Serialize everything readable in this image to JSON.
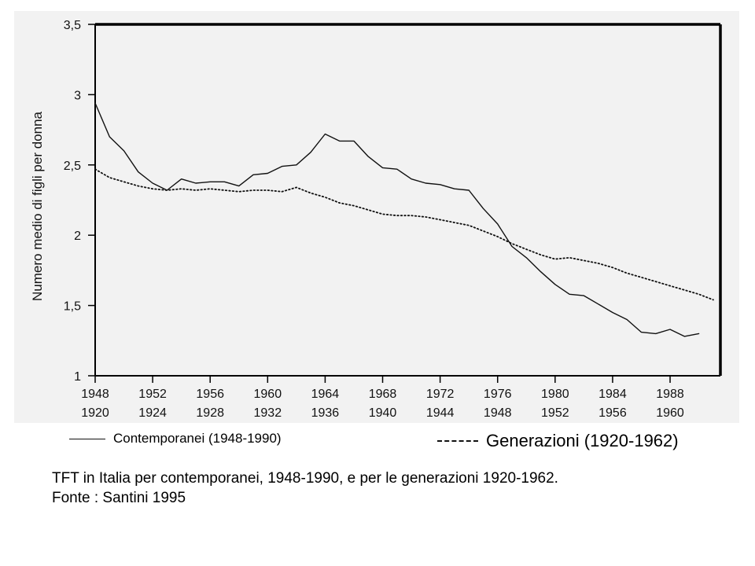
{
  "chart_data": {
    "type": "line",
    "ylabel": "Numero medio di figli per donna",
    "xlabel": "",
    "ylim": [
      1,
      3.5
    ],
    "yticks": [
      1,
      1.5,
      2,
      2.5,
      3,
      3.5
    ],
    "ytick_labels": [
      "1",
      "1,5",
      "2",
      "2,5",
      "3",
      "3,5"
    ],
    "xlim": [
      1948,
      1991.5
    ],
    "xticks": [
      1948,
      1952,
      1956,
      1960,
      1964,
      1968,
      1972,
      1976,
      1980,
      1984,
      1988
    ],
    "xtick_labels_row1": [
      "1948",
      "1952",
      "1956",
      "1960",
      "1964",
      "1968",
      "1972",
      "1976",
      "1980",
      "1984",
      "1988"
    ],
    "xtick_labels_row2": [
      "1920",
      "1924",
      "1928",
      "1932",
      "1936",
      "1940",
      "1944",
      "1948",
      "1952",
      "1956",
      "1960"
    ],
    "grid": false,
    "legend_position": "bottom",
    "series": [
      {
        "name": "Contemporanei (1948-1990)",
        "style": "solid",
        "color": "#111111",
        "x": [
          1948,
          1949,
          1950,
          1951,
          1952,
          1953,
          1954,
          1955,
          1956,
          1957,
          1958,
          1959,
          1960,
          1961,
          1962,
          1963,
          1964,
          1965,
          1966,
          1967,
          1968,
          1969,
          1970,
          1971,
          1972,
          1973,
          1974,
          1975,
          1976,
          1977,
          1978,
          1979,
          1980,
          1981,
          1982,
          1983,
          1984,
          1985,
          1986,
          1987,
          1988,
          1989,
          1990
        ],
        "y": [
          2.94,
          2.7,
          2.6,
          2.45,
          2.37,
          2.32,
          2.4,
          2.37,
          2.38,
          2.38,
          2.35,
          2.43,
          2.44,
          2.49,
          2.5,
          2.59,
          2.72,
          2.67,
          2.67,
          2.56,
          2.48,
          2.47,
          2.4,
          2.37,
          2.36,
          2.33,
          2.32,
          2.19,
          2.08,
          1.92,
          1.84,
          1.74,
          1.65,
          1.58,
          1.57,
          1.51,
          1.45,
          1.4,
          1.31,
          1.3,
          1.33,
          1.28,
          1.3
        ]
      },
      {
        "name": "Generazioni (1920-1962)",
        "style": "dotted",
        "color": "#111111",
        "x": [
          1948,
          1949,
          1950,
          1951,
          1952,
          1953,
          1954,
          1955,
          1956,
          1957,
          1958,
          1959,
          1960,
          1961,
          1962,
          1963,
          1964,
          1965,
          1966,
          1967,
          1968,
          1969,
          1970,
          1971,
          1972,
          1973,
          1974,
          1975,
          1976,
          1977,
          1978,
          1979,
          1980,
          1981,
          1982,
          1983,
          1984,
          1985,
          1986,
          1987,
          1988,
          1989,
          1990,
          1991
        ],
        "y": [
          2.47,
          2.41,
          2.38,
          2.35,
          2.33,
          2.32,
          2.33,
          2.32,
          2.33,
          2.32,
          2.31,
          2.32,
          2.32,
          2.31,
          2.34,
          2.3,
          2.27,
          2.23,
          2.21,
          2.18,
          2.15,
          2.14,
          2.14,
          2.13,
          2.11,
          2.09,
          2.07,
          2.03,
          1.99,
          1.94,
          1.9,
          1.86,
          1.83,
          1.84,
          1.82,
          1.8,
          1.77,
          1.73,
          1.7,
          1.67,
          1.64,
          1.61,
          1.58,
          1.54
        ]
      }
    ]
  },
  "legend": {
    "series1_label": "Contemporanei (1948-1990)",
    "series2_label": "Generazioni (1920-1962)"
  },
  "caption": {
    "line1": "TFT in Italia per contemporanei, 1948-1990, e per le generazioni 1920-1962.",
    "line2": "Fonte : Santini 1995"
  }
}
